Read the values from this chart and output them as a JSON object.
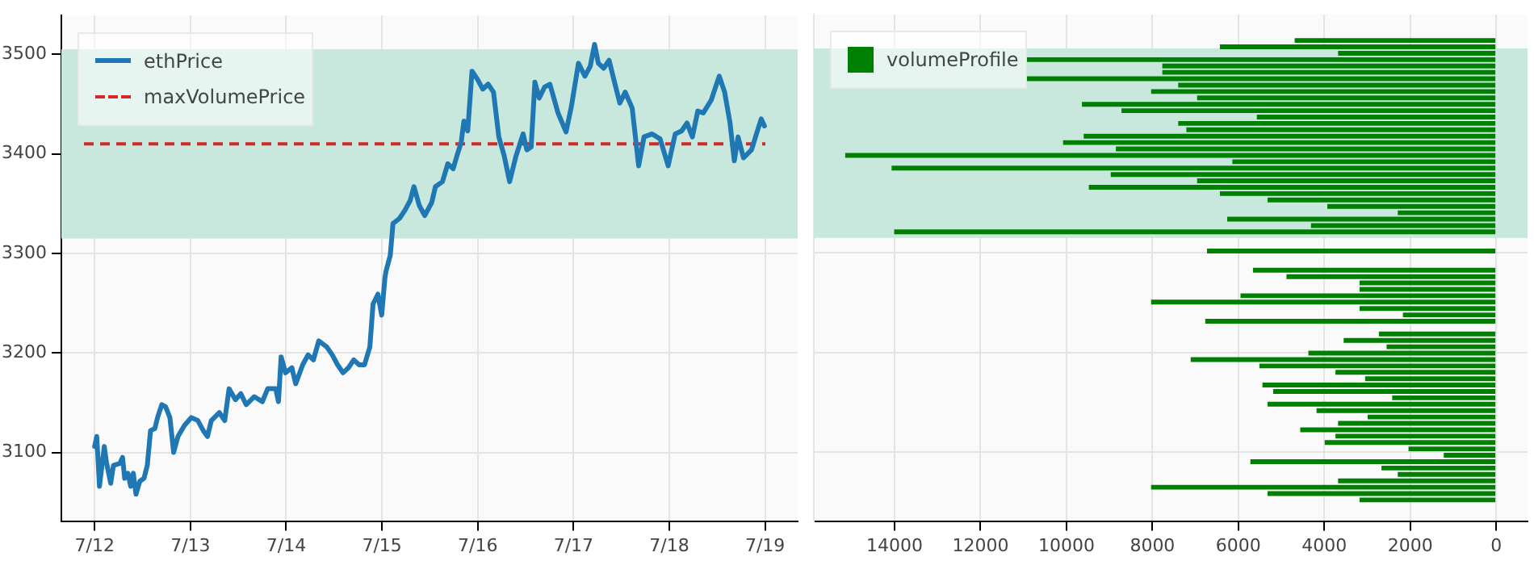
{
  "chart_data": [
    {
      "type": "line",
      "xlim": [
        "--07-11T15:40",
        "--07-19T08:10"
      ],
      "xticks": [
        {
          "value": "--07-12",
          "label": "7/12"
        },
        {
          "value": "--07-13",
          "label": "7/13"
        },
        {
          "value": "--07-14",
          "label": "7/14"
        },
        {
          "value": "--07-15",
          "label": "7/15"
        },
        {
          "value": "--07-16",
          "label": "7/16"
        },
        {
          "value": "--07-17",
          "label": "7/17"
        },
        {
          "value": "--07-18",
          "label": "7/18"
        },
        {
          "value": "--07-19",
          "label": "7/19"
        }
      ],
      "ylim": [
        3031,
        3539
      ],
      "yticks": [
        3100,
        3200,
        3300,
        3400,
        3500
      ],
      "grid": true,
      "legend": "top left",
      "marker": "none",
      "bands": [
        {
          "axis": "y",
          "from": 3315,
          "to": 3505,
          "color": "#c8e8de"
        }
      ],
      "ref_lines": [
        {
          "axis": "y",
          "value": 3410,
          "label": "maxVolumePrice",
          "color": "#d62728",
          "line_style": "dashed"
        }
      ],
      "x": [
        "--07-12T00:00",
        "--07-12T00:32",
        "--07-12T01:13",
        "--07-12T02:25",
        "--07-12T02:58",
        "--07-12T04:02",
        "--07-12T04:43",
        "--07-12T06:20",
        "--07-12T07:00",
        "--07-12T07:32",
        "--07-12T08:21",
        "--07-12T09:02",
        "--07-12T09:42",
        "--07-12T10:22",
        "--07-12T11:19",
        "--07-12T12:23",
        "--07-12T13:12",
        "--07-12T14:01",
        "--07-12T15:05",
        "--07-12T15:46",
        "--07-12T16:50",
        "--07-12T17:47",
        "--07-12T18:52",
        "--07-12T19:48",
        "--07-12T20:53",
        "--07-12T22:29",
        "--07-13T00:15",
        "--07-13T01:52",
        "--07-13T03:13",
        "--07-13T04:17",
        "--07-13T05:14",
        "--07-13T07:15",
        "--07-13T08:36",
        "--07-13T09:41",
        "--07-13T11:17",
        "--07-13T12:38",
        "--07-13T13:59",
        "--07-13T16:00",
        "--07-13T18:02",
        "--07-13T19:22",
        "--07-13T21:23",
        "--07-13T22:04",
        "--07-13T22:44",
        "--07-13T23:49",
        "--07-14T01:26",
        "--07-14T02:23",
        "--07-14T04:08",
        "--07-14T05:29",
        "--07-14T06:49",
        "--07-14T08:10",
        "--07-14T10:11",
        "--07-14T11:32",
        "--07-14T12:53",
        "--07-14T14:14",
        "--07-14T15:35",
        "--07-14T16:56",
        "--07-14T18:17",
        "--07-14T19:37",
        "--07-14T20:58",
        "--07-14T21:46",
        "--07-14T22:59",
        "--07-14T23:56",
        "--07-15T00:44",
        "--07-15T01:01",
        "--07-15T02:05",
        "--07-15T02:46",
        "--07-15T04:22",
        "--07-15T05:43",
        "--07-15T07:04",
        "--07-15T08:01",
        "--07-15T09:22",
        "--07-15T10:43",
        "--07-15T12:28",
        "--07-15T13:24",
        "--07-15T15:09",
        "--07-15T16:30",
        "--07-15T17:50",
        "--07-15T18:47",
        "--07-15T19:52",
        "--07-15T20:32",
        "--07-15T21:29",
        "--07-15T22:34",
        "--07-15T23:55",
        "--07-16T01:15",
        "--07-16T02:36",
        "--07-16T03:57",
        "--07-16T05:17",
        "--07-16T06:38",
        "--07-16T07:59",
        "--07-16T09:36",
        "--07-16T11:22",
        "--07-16T12:18",
        "--07-16T13:23",
        "--07-16T14:19",
        "--07-16T15:24",
        "--07-16T16:44",
        "--07-16T18:05",
        "--07-16T20:07",
        "--07-16T22:08",
        "--07-16T23:29",
        "--07-17T01:14",
        "--07-17T02:51",
        "--07-17T04:11",
        "--07-17T05:16",
        "--07-17T06:13",
        "--07-17T07:34",
        "--07-17T08:55",
        "--07-17T10:16",
        "--07-17T11:36",
        "--07-17T12:57",
        "--07-17T14:42",
        "--07-17T16:19",
        "--07-17T17:40",
        "--07-17T19:41",
        "--07-17T21:42",
        "--07-17T23:43",
        "--07-18T01:29",
        "--07-18T03:05",
        "--07-18T04:26",
        "--07-18T05:47",
        "--07-18T07:08",
        "--07-18T08:29",
        "--07-18T10:30",
        "--07-18T12:31",
        "--07-18T13:52",
        "--07-18T15:13",
        "--07-18T16:17",
        "--07-18T17:14",
        "--07-18T18:35",
        "--07-18T20:36",
        "--07-18T22:13",
        "--07-18T23:02",
        "--07-18T23:50"
      ],
      "series": [
        {
          "name": "ethPrice",
          "color": "#1f77b4",
          "values": [
            3106,
            3116,
            3066,
            3106,
            3090,
            3069,
            3087,
            3089,
            3095,
            3074,
            3079,
            3066,
            3079,
            3058,
            3071,
            3074,
            3087,
            3122,
            3124,
            3135,
            3148,
            3146,
            3135,
            3100,
            3116,
            3127,
            3135,
            3132,
            3122,
            3116,
            3132,
            3140,
            3132,
            3164,
            3153,
            3159,
            3148,
            3156,
            3151,
            3164,
            3164,
            3151,
            3196,
            3180,
            3185,
            3169,
            3188,
            3198,
            3193,
            3212,
            3206,
            3198,
            3188,
            3180,
            3185,
            3193,
            3188,
            3188,
            3206,
            3249,
            3259,
            3238,
            3275,
            3282,
            3298,
            3330,
            3335,
            3343,
            3353,
            3367,
            3348,
            3338,
            3351,
            3367,
            3372,
            3390,
            3385,
            3398,
            3412,
            3433,
            3423,
            3483,
            3475,
            3465,
            3470,
            3462,
            3417,
            3398,
            3372,
            3398,
            3420,
            3404,
            3407,
            3472,
            3456,
            3467,
            3470,
            3441,
            3422,
            3448,
            3491,
            3478,
            3488,
            3510,
            3491,
            3486,
            3494,
            3472,
            3451,
            3462,
            3446,
            3388,
            3417,
            3420,
            3415,
            3388,
            3420,
            3423,
            3431,
            3417,
            3443,
            3441,
            3454,
            3478,
            3462,
            3431,
            3393,
            3417,
            3396,
            3404,
            3425,
            3435,
            3428
          ]
        }
      ]
    },
    {
      "type": "bar",
      "orientation": "horizontal",
      "xlim": [
        15880,
        -730
      ],
      "xticks": [
        14000,
        12000,
        10000,
        8000,
        6000,
        4000,
        2000,
        0
      ],
      "ylim": [
        3031,
        3539
      ],
      "yticks": [
        3100,
        3200,
        3300,
        3400,
        3500
      ],
      "tick_labels": "x",
      "grid": true,
      "legend": "top left",
      "bands": [
        {
          "axis": "y",
          "from": 3315,
          "to": 3505,
          "color": "#c8e8de"
        }
      ],
      "x": [
        3513,
        3506.6,
        3500.2,
        3493.8,
        3487.4,
        3481,
        3474.6,
        3468.2,
        3461.8,
        3455.4,
        3449,
        3442.6,
        3436.2,
        3429.8,
        3423.4,
        3417,
        3410.6,
        3404.2,
        3397.8,
        3391.4,
        3385,
        3378.6,
        3372.2,
        3365.8,
        3359.4,
        3353,
        3346.6,
        3340.2,
        3333.8,
        3327.4,
        3321,
        3314.6,
        3308.2,
        3301.8,
        3295.4,
        3289,
        3282.6,
        3276.2,
        3269.8,
        3263.4,
        3257,
        3250.6,
        3244.2,
        3237.8,
        3231.4,
        3225,
        3218.6,
        3212.2,
        3205.8,
        3199.4,
        3193,
        3186.6,
        3180.2,
        3173.8,
        3167.4,
        3161,
        3154.6,
        3148.2,
        3141.8,
        3135.4,
        3129,
        3122.6,
        3116.2,
        3109.8,
        3103.4,
        3097,
        3090.6,
        3084.2,
        3077.8,
        3071.4,
        3065,
        3058.6,
        3052.2
      ],
      "series": [
        {
          "name": "volumeProfile",
          "color": "#008000",
          "values": [
            4690,
            6430,
            3680,
            10920,
            7770,
            7770,
            10920,
            7400,
            8030,
            6960,
            9640,
            8720,
            5570,
            7400,
            7210,
            9600,
            10080,
            8850,
            15150,
            6140,
            14070,
            8970,
            6960,
            9480,
            6430,
            5320,
            3930,
            2290,
            6260,
            4310,
            14010,
            null,
            null,
            6730,
            null,
            null,
            5660,
            4880,
            3180,
            3180,
            5950,
            8030,
            3180,
            2170,
            6770,
            null,
            2730,
            3550,
            2550,
            4370,
            7110,
            5510,
            3740,
            3050,
            5440,
            5190,
            2420,
            5320,
            4180,
            2990,
            3680,
            4560,
            3740,
            3990,
            2040,
            1220,
            5720,
            2670,
            2290,
            3680,
            8030,
            5320,
            3180
          ]
        }
      ]
    }
  ]
}
